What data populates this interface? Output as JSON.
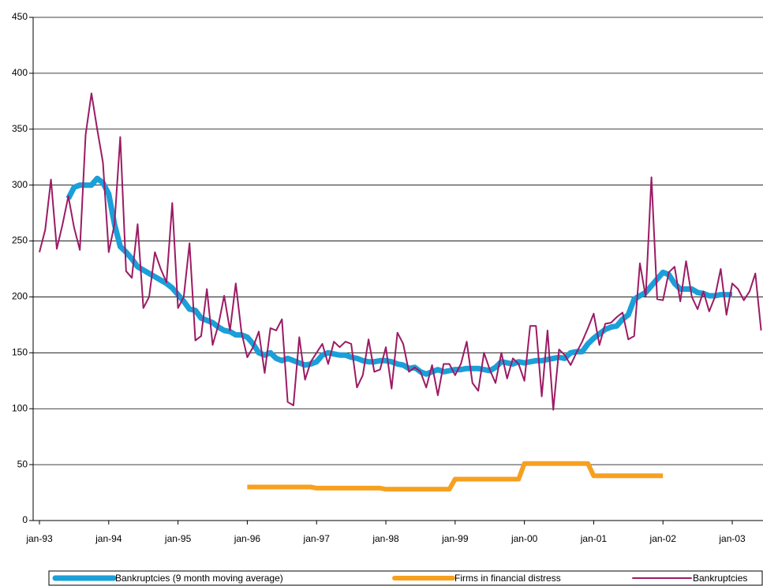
{
  "chart_data": {
    "type": "line",
    "categories": [
      "jan-93",
      null,
      null,
      null,
      null,
      null,
      null,
      null,
      null,
      null,
      null,
      null,
      "jan-94",
      null,
      null,
      null,
      null,
      null,
      null,
      null,
      null,
      null,
      null,
      null,
      "jan-95",
      null,
      null,
      null,
      null,
      null,
      null,
      null,
      null,
      null,
      null,
      null,
      "jan-96",
      null,
      null,
      null,
      null,
      null,
      null,
      null,
      null,
      null,
      null,
      null,
      "jan-97",
      null,
      null,
      null,
      null,
      null,
      null,
      null,
      null,
      null,
      null,
      null,
      "jan-98",
      null,
      null,
      null,
      null,
      null,
      null,
      null,
      null,
      null,
      null,
      null,
      "jan-99",
      null,
      null,
      null,
      null,
      null,
      null,
      null,
      null,
      null,
      null,
      null,
      "jan-00",
      null,
      null,
      null,
      null,
      null,
      null,
      null,
      null,
      null,
      null,
      null,
      "jan-01",
      null,
      null,
      null,
      null,
      null,
      null,
      null,
      null,
      null,
      null,
      null,
      "jan-02",
      null,
      null,
      null,
      null,
      null,
      null,
      null,
      null,
      null,
      null,
      null,
      "jan-03",
      null,
      null,
      null,
      null,
      null
    ],
    "series": [
      {
        "name": "Bankruptcies (9 month moving average)",
        "color": "#1a9fd9",
        "width": 7,
        "values": [
          null,
          null,
          null,
          null,
          null,
          288,
          298,
          300,
          300,
          300,
          306,
          302,
          292,
          265,
          245,
          240,
          234,
          227,
          224,
          221,
          218,
          215,
          212,
          208,
          202,
          196,
          189,
          188,
          181,
          179,
          177,
          173,
          170,
          169,
          166,
          166,
          164,
          158,
          150,
          148,
          150,
          145,
          143,
          145,
          143,
          141,
          139,
          140,
          142,
          148,
          150,
          149,
          148,
          148,
          146,
          145,
          143,
          142,
          142,
          143,
          143,
          142,
          140,
          139,
          136,
          137,
          133,
          131,
          133,
          135,
          133,
          134,
          135,
          135,
          136,
          136,
          136,
          135,
          134,
          137,
          142,
          141,
          140,
          142,
          141,
          142,
          143,
          143,
          144,
          145,
          146,
          145,
          150,
          151,
          151,
          158,
          163,
          167,
          171,
          173,
          174,
          180,
          184,
          198,
          201,
          204,
          210,
          216,
          222,
          220,
          212,
          207,
          207,
          207,
          204,
          203,
          201,
          201,
          202,
          202,
          202,
          null,
          null,
          null,
          null,
          null
        ]
      },
      {
        "name": "Firms in financial distress",
        "color": "#f7a020",
        "width": 6,
        "values": [
          null,
          null,
          null,
          null,
          null,
          null,
          null,
          null,
          null,
          null,
          null,
          null,
          null,
          null,
          null,
          null,
          null,
          null,
          null,
          null,
          null,
          null,
          null,
          null,
          null,
          null,
          null,
          null,
          null,
          null,
          null,
          null,
          null,
          null,
          null,
          null,
          30,
          30,
          30,
          30,
          30,
          30,
          30,
          30,
          30,
          30,
          30,
          30,
          29,
          29,
          29,
          29,
          29,
          29,
          29,
          29,
          29,
          29,
          29,
          29,
          28,
          28,
          28,
          28,
          28,
          28,
          28,
          28,
          28,
          28,
          28,
          28,
          37,
          37,
          37,
          37,
          37,
          37,
          37,
          37,
          37,
          37,
          37,
          37,
          51,
          51,
          51,
          51,
          51,
          51,
          51,
          51,
          51,
          51,
          51,
          51,
          40,
          40,
          40,
          40,
          40,
          40,
          40,
          40,
          40,
          40,
          40,
          40,
          40,
          null,
          null,
          null,
          null,
          null,
          null,
          null,
          null,
          null,
          null,
          null,
          null,
          null,
          null,
          null,
          null,
          null
        ]
      },
      {
        "name": "Bankruptcies",
        "color": "#9b1b64",
        "width": 2,
        "values": [
          240,
          260,
          305,
          243,
          265,
          290,
          262,
          242,
          345,
          382,
          350,
          320,
          240,
          265,
          343,
          223,
          217,
          265,
          190,
          200,
          240,
          225,
          213,
          284,
          190,
          200,
          248,
          161,
          165,
          207,
          157,
          175,
          201,
          170,
          212,
          168,
          146,
          155,
          169,
          132,
          172,
          170,
          180,
          106,
          103,
          164,
          126,
          142,
          150,
          158,
          140,
          160,
          155,
          160,
          158,
          119,
          130,
          162,
          133,
          135,
          155,
          118,
          168,
          158,
          133,
          137,
          133,
          119,
          139,
          112,
          140,
          140,
          130,
          140,
          160,
          123,
          116,
          150,
          135,
          123,
          150,
          127,
          145,
          140,
          125,
          174,
          174,
          111,
          170,
          99,
          153,
          148,
          139,
          150,
          160,
          172,
          185,
          157,
          176,
          177,
          182,
          186,
          162,
          165,
          230,
          200,
          307,
          198,
          197,
          222,
          227,
          196,
          232,
          200,
          189,
          205,
          187,
          200,
          225,
          184,
          212,
          207,
          197,
          205,
          221,
          170
        ]
      }
    ],
    "ylim": [
      0,
      450
    ],
    "yticks": [
      0,
      50,
      100,
      150,
      200,
      250,
      300,
      350,
      400,
      450
    ],
    "grid": true
  }
}
